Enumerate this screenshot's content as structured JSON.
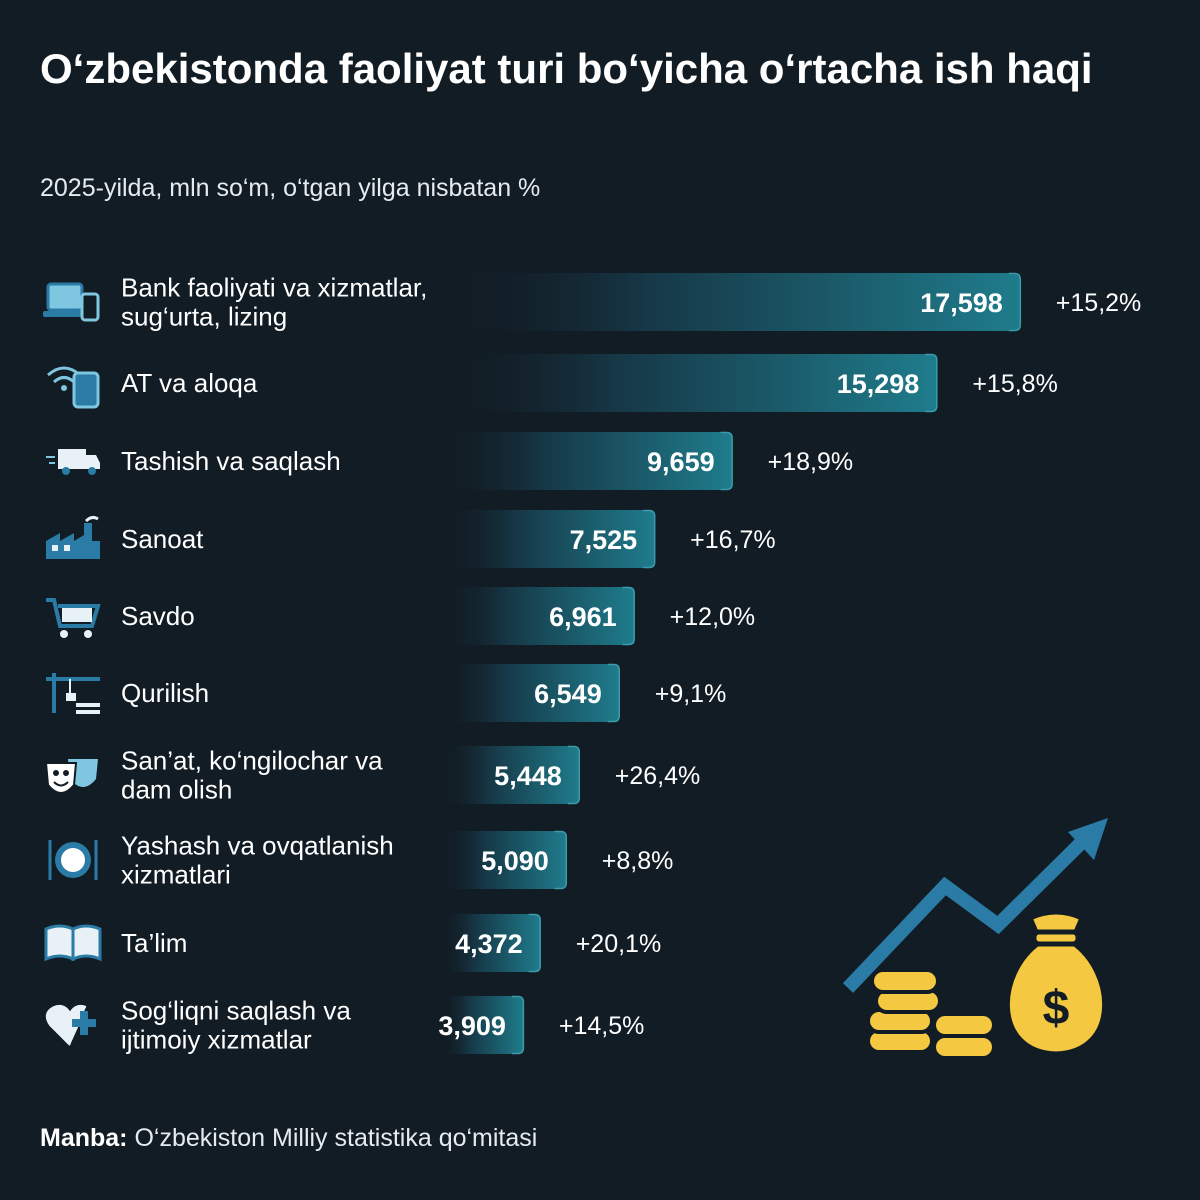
{
  "title": "O‘zbekistonda faoliyat turi bo‘yicha o‘rtacha ish haqi",
  "subtitle": "2025-yilda, mln so‘m, o‘tgan yilga nisbatan %",
  "source": {
    "prefix": "Manba:",
    "text": " O‘zbekiston Milliy statistika qo‘mitasi"
  },
  "colors": {
    "background": "#121c24",
    "bar_start": "#121c24",
    "bar_end": "#1e7a8a",
    "bar_edge": "#3a9bab",
    "accent_blue": "#2a7ba5",
    "coin_gold": "#f5c842"
  },
  "chart_data": {
    "type": "bar",
    "orientation": "horizontal",
    "unit": "mln so‘m",
    "categories": [
      [
        "Bank faoliyati va xizmatlar,",
        "sug‘urta, lizing"
      ],
      [
        "AT va aloqa"
      ],
      [
        "Tashish va saqlash"
      ],
      [
        "Sanoat"
      ],
      [
        "Savdo"
      ],
      [
        "Qurilish"
      ],
      [
        "San’at, ko‘ngilochar va",
        "dam olish"
      ],
      [
        "Yashash va ovqatlanish",
        "xizmatlari"
      ],
      [
        "Ta’lim"
      ],
      [
        "Sog‘liqni saqlash va",
        "ijtimoiy xizmatlar"
      ]
    ],
    "values": [
      17.598,
      15.298,
      9.659,
      7.525,
      6.961,
      6.549,
      5.448,
      5.09,
      4.372,
      3.909
    ],
    "value_labels": [
      "17,598",
      "15,298",
      "9,659",
      "7,525",
      "6,961",
      "6,549",
      "5,448",
      "5,090",
      "4,372",
      "3,909"
    ],
    "change_labels": [
      "+15,2%",
      "+15,8%",
      "+18,9%",
      "+16,7%",
      "+12,0%",
      "+9,1%",
      "+26,4%",
      "+8,8%",
      "+20,1%",
      "+14,5%"
    ],
    "icons": [
      "laptop-phone-icon",
      "wifi-phone-icon",
      "truck-icon",
      "factory-icon",
      "cart-icon",
      "crane-icon",
      "theater-masks-icon",
      "plate-cutlery-icon",
      "book-icon",
      "heart-cross-icon"
    ],
    "grid": false,
    "legend": "none"
  }
}
